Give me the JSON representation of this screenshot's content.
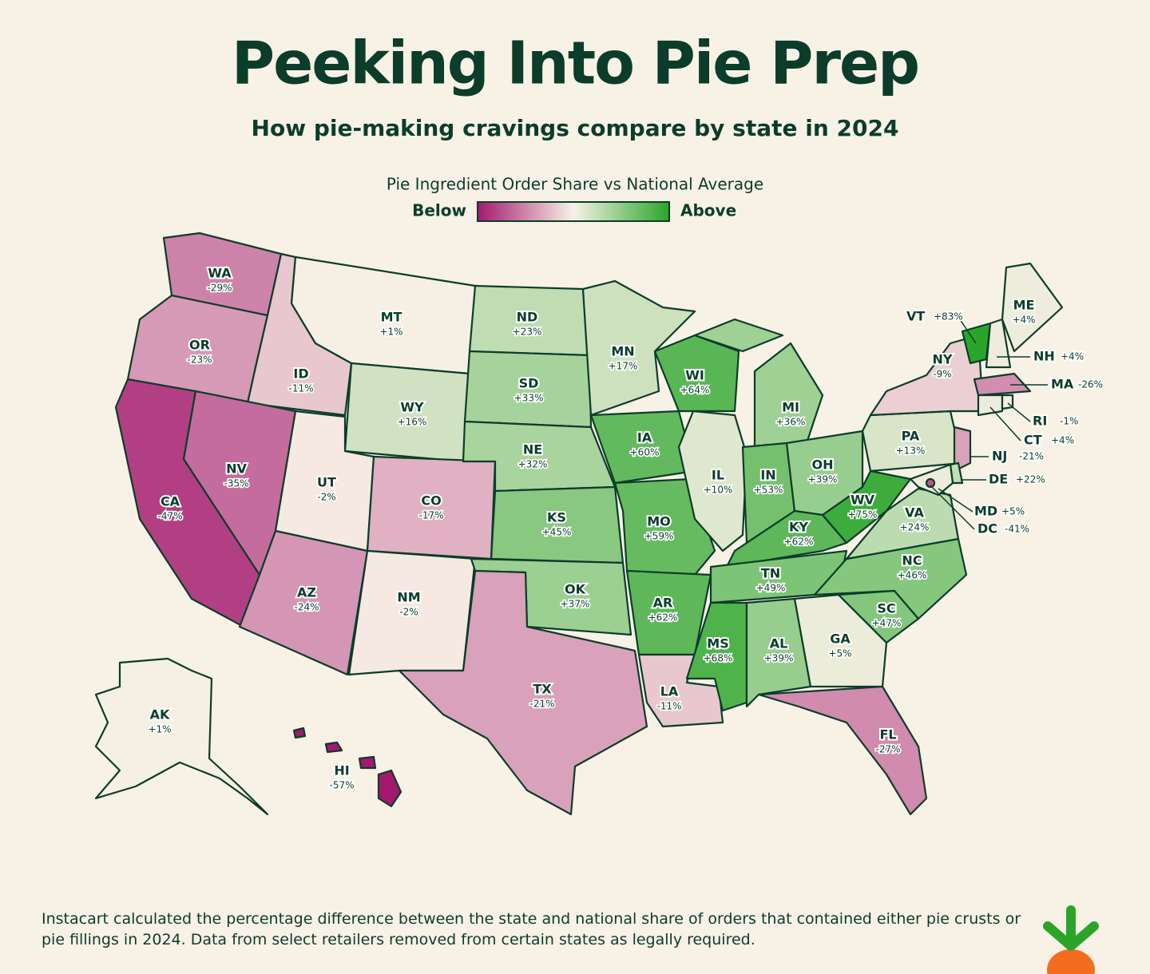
{
  "chart_data": {
    "type": "choropleth",
    "title": "Peeking Into Pie Prep",
    "subtitle": "How pie-making cravings compare by state in 2024",
    "legend_title": "Pie Ingredient Order Share vs National Average",
    "legend_low": "Below",
    "legend_high": "Above",
    "colors": {
      "below": "#a3196f",
      "neutral": "#f8f1e6",
      "above": "#2aa52a"
    },
    "categories": [
      "WA",
      "OR",
      "CA",
      "ID",
      "NV",
      "MT",
      "WY",
      "UT",
      "CO",
      "AZ",
      "NM",
      "ND",
      "SD",
      "NE",
      "KS",
      "OK",
      "TX",
      "MN",
      "IA",
      "MO",
      "AR",
      "LA",
      "WI",
      "IL",
      "MI",
      "IN",
      "OH",
      "KY",
      "TN",
      "MS",
      "AL",
      "GA",
      "FL",
      "SC",
      "NC",
      "VA",
      "WV",
      "PA",
      "NY",
      "NJ",
      "DE",
      "MD",
      "DC",
      "VT",
      "NH",
      "ME",
      "MA",
      "CT",
      "RI",
      "AK",
      "HI"
    ],
    "values": [
      -29,
      -23,
      -47,
      -11,
      -35,
      1,
      16,
      -2,
      -17,
      -24,
      -2,
      23,
      33,
      32,
      45,
      37,
      -21,
      17,
      60,
      59,
      62,
      -11,
      64,
      10,
      36,
      53,
      39,
      62,
      49,
      68,
      39,
      5,
      -27,
      47,
      46,
      24,
      75,
      13,
      -9,
      -21,
      22,
      5,
      -41,
      83,
      4,
      4,
      -26,
      4,
      -1,
      1,
      -57
    ],
    "value_labels": [
      "-29%",
      "-23%",
      "-47%",
      "-11%",
      "-35%",
      "+1%",
      "+16%",
      "-2%",
      "-17%",
      "-24%",
      "-2%",
      "+23%",
      "+33%",
      "+32%",
      "+45%",
      "+37%",
      "-21%",
      "+17%",
      "+60%",
      "+59%",
      "+62%",
      "-11%",
      "+64%",
      "+10%",
      "+36%",
      "+53%",
      "+39%",
      "+62%",
      "+49%",
      "+68%",
      "+39%",
      "+5%",
      "-27%",
      "+47%",
      "+46%",
      "+24%",
      "+75%",
      "+13%",
      "-9%",
      "-21%",
      "+22%",
      "+5%",
      "-41%",
      "+83%",
      "+4%",
      "+4%",
      "-26%",
      "+4%",
      "-1%",
      "+1%",
      "-57%"
    ],
    "footnote": "Instacart calculated the percentage difference between the state and national share of orders that contained either pie crusts or pie fillings in 2024. Data from select retailers removed from certain states as legally required."
  }
}
